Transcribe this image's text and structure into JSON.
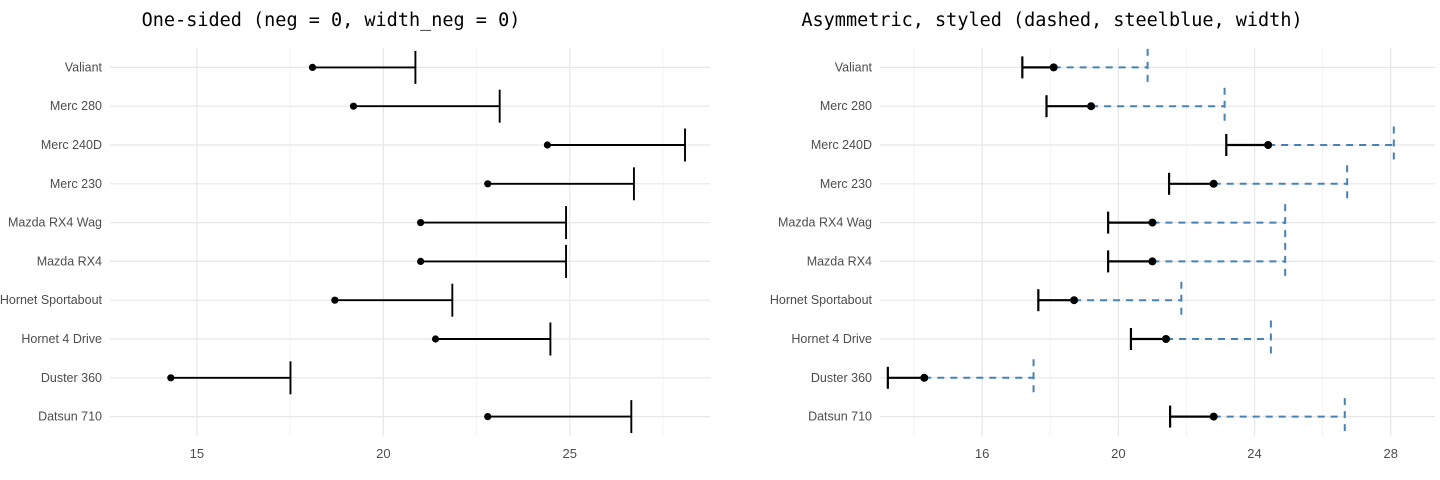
{
  "theme": {
    "background": "#ffffff",
    "grid_major_color": "#e7e7e7",
    "grid_minor_color": "#f1f1f1",
    "axis_text_color": "#4d4d4d",
    "title_color": "#000000",
    "accent_steelblue": "#4682B4",
    "point_color": "#000000"
  },
  "chart_data": [
    {
      "type": "errorbar",
      "orientation": "horizontal",
      "title": "One-sided (neg = 0, width_neg = 0)",
      "categories": [
        "Valiant",
        "Merc 280",
        "Merc 240D",
        "Merc 230",
        "Mazda RX4 Wag",
        "Mazda RX4",
        "Hornet Sportabout",
        "Hornet 4 Drive",
        "Duster 360",
        "Datsun 710"
      ],
      "point": [
        18.1,
        19.2,
        24.4,
        22.8,
        21.0,
        21.0,
        18.7,
        21.4,
        14.3,
        22.8
      ],
      "lower": [
        18.1,
        19.2,
        24.4,
        22.8,
        21.0,
        21.0,
        18.7,
        21.4,
        14.3,
        22.8
      ],
      "upper": [
        20.86,
        23.12,
        28.09,
        26.72,
        24.9,
        24.9,
        21.85,
        24.48,
        17.51,
        26.65
      ],
      "x_major_ticks": [
        15,
        20,
        25
      ],
      "x_minor_ticks": [
        17.5,
        22.5,
        27.5
      ],
      "xlim": [
        12.67,
        28.76
      ],
      "grid": true,
      "legend": "none",
      "neg_style": {
        "color": "#000000",
        "width": 0,
        "cap": 0,
        "dash": ""
      },
      "pos_style": {
        "color": "#000000",
        "width": 1.9,
        "cap": 33,
        "dash": ""
      },
      "point_style": {
        "color": "#000000",
        "radius": 3.6
      }
    },
    {
      "type": "errorbar",
      "orientation": "horizontal",
      "title": "Asymmetric, styled (dashed, steelblue, width)",
      "categories": [
        "Valiant",
        "Merc 280",
        "Merc 240D",
        "Merc 230",
        "Mazda RX4 Wag",
        "Mazda RX4",
        "Hornet Sportabout",
        "Hornet 4 Drive",
        "Duster 360",
        "Datsun 710"
      ],
      "point": [
        18.1,
        19.2,
        24.4,
        22.8,
        21.0,
        21.0,
        18.7,
        21.4,
        14.3,
        22.8
      ],
      "lower": [
        17.18,
        17.89,
        23.17,
        21.49,
        19.7,
        19.7,
        17.65,
        20.37,
        13.23,
        21.52
      ],
      "upper": [
        20.86,
        23.12,
        28.09,
        26.72,
        24.9,
        24.9,
        21.85,
        24.48,
        17.51,
        26.65
      ],
      "x_major_ticks": [
        16,
        20,
        24,
        28
      ],
      "x_minor_ticks": [
        14,
        18,
        22,
        26
      ],
      "xlim": [
        13.0,
        29.3
      ],
      "grid": true,
      "legend": "none",
      "neg_style": {
        "color": "#000000",
        "width": 2.2,
        "cap": 22,
        "dash": ""
      },
      "pos_style": {
        "color": "#4682B4",
        "width": 2.0,
        "cap": 37,
        "dash": "7 6"
      },
      "point_style": {
        "color": "#000000",
        "radius": 4.0
      }
    }
  ]
}
